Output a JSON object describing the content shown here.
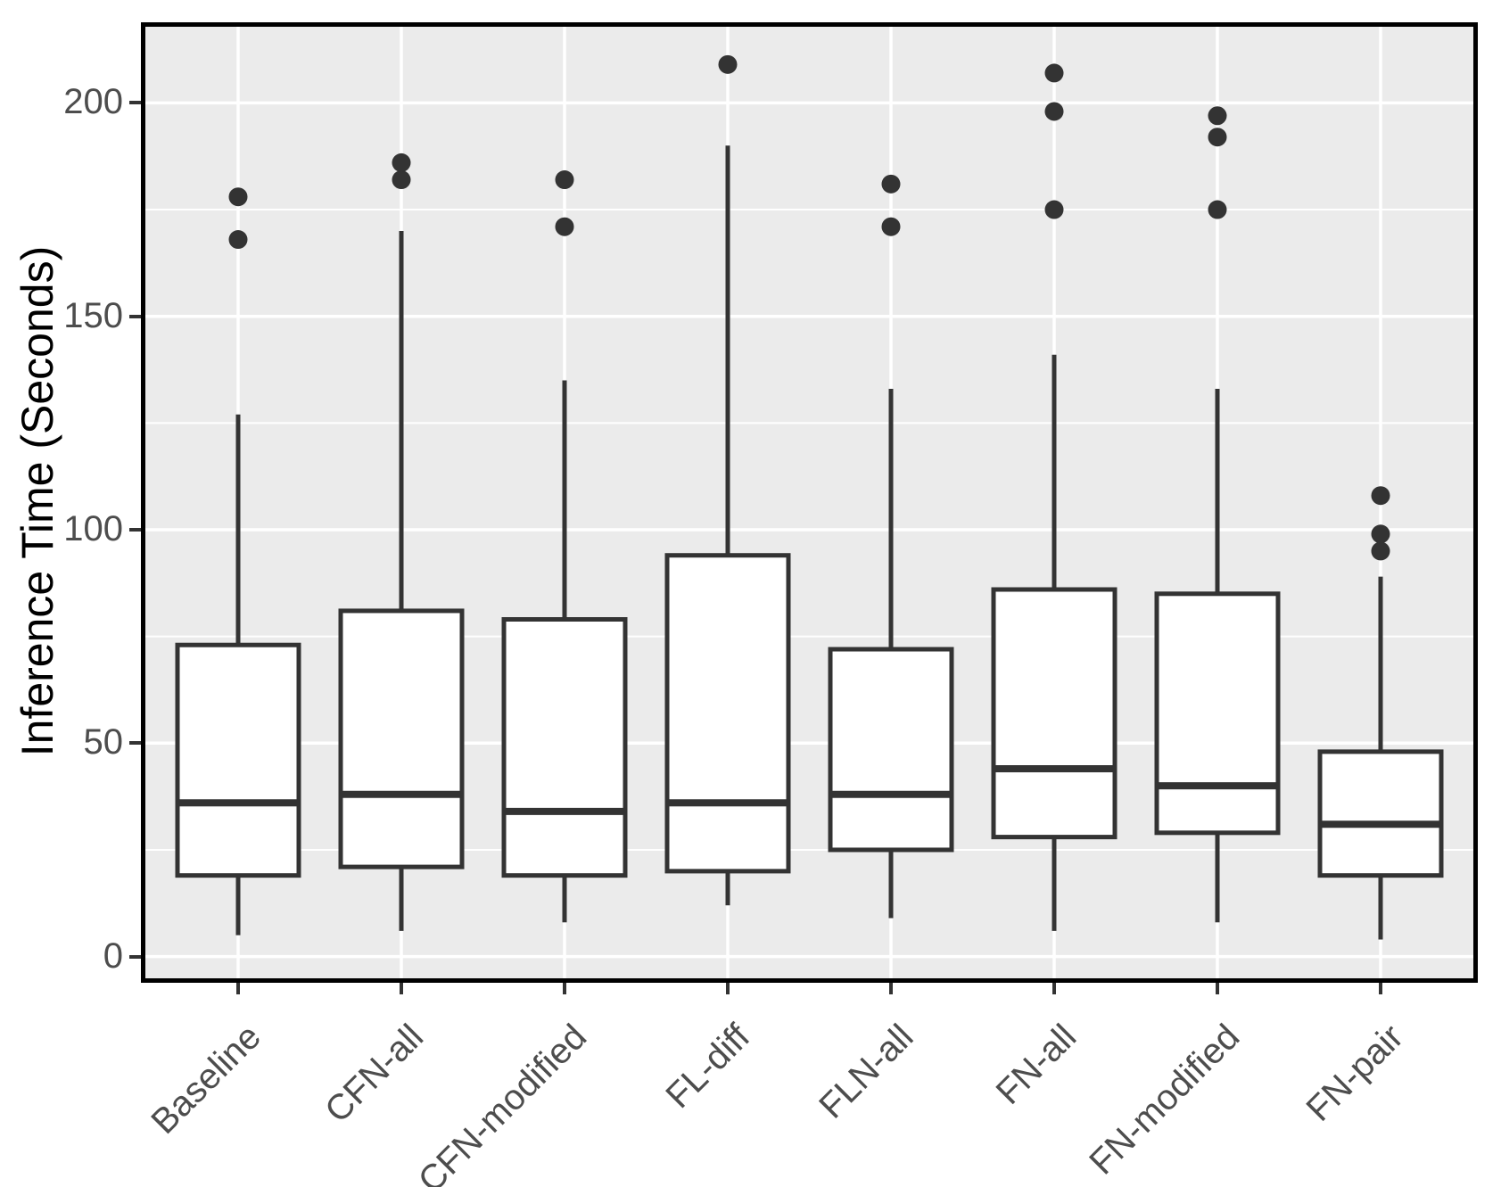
{
  "colors": {
    "panel_background": "#EBEBEB",
    "grid_major": "#FFFFFF",
    "grid_minor": "#FFFFFF",
    "box_stroke": "#333333",
    "box_fill": "#FFFFFF",
    "outlier": "#333333",
    "panel_border": "#000000",
    "tick_mark": "#333333",
    "axis_text": "#4D4D4D",
    "axis_title": "#000000",
    "page_background": "#FFFFFF"
  },
  "chart_data": {
    "type": "boxplot",
    "title": "",
    "xlabel": "",
    "ylabel": "Inference Time (Seconds)",
    "ylim": [
      -6,
      219
    ],
    "yticks": [
      0,
      50,
      100,
      150,
      200
    ],
    "ytick_labels": [
      "0",
      "50",
      "100",
      "150",
      "200"
    ],
    "yticks_minor": [
      25,
      75,
      125,
      175
    ],
    "grid": "on",
    "legend_position": "none",
    "categories": [
      "Baseline",
      "CFN-all",
      "CFN-modified",
      "FL-diff",
      "FLN-all",
      "FN-all",
      "FN-modified",
      "FN-pair"
    ],
    "series": [
      {
        "name": "Baseline",
        "whisker_low": 5,
        "q1": 19,
        "median": 36,
        "q3": 73,
        "whisker_high": 127,
        "outliers": [
          168,
          178
        ]
      },
      {
        "name": "CFN-all",
        "whisker_low": 6,
        "q1": 21,
        "median": 38,
        "q3": 81,
        "whisker_high": 170,
        "outliers": [
          182,
          186
        ]
      },
      {
        "name": "CFN-modified",
        "whisker_low": 8,
        "q1": 19,
        "median": 34,
        "q3": 79,
        "whisker_high": 135,
        "outliers": [
          171,
          182
        ]
      },
      {
        "name": "FL-diff",
        "whisker_low": 12,
        "q1": 20,
        "median": 36,
        "q3": 94,
        "whisker_high": 190,
        "outliers": [
          209
        ]
      },
      {
        "name": "FLN-all",
        "whisker_low": 9,
        "q1": 25,
        "median": 38,
        "q3": 72,
        "whisker_high": 133,
        "outliers": [
          171,
          181
        ]
      },
      {
        "name": "FN-all",
        "whisker_low": 6,
        "q1": 28,
        "median": 44,
        "q3": 86,
        "whisker_high": 141,
        "outliers": [
          175,
          198,
          207
        ]
      },
      {
        "name": "FN-modified",
        "whisker_low": 8,
        "q1": 29,
        "median": 40,
        "q3": 85,
        "whisker_high": 133,
        "outliers": [
          175,
          192,
          197
        ]
      },
      {
        "name": "FN-pair",
        "whisker_low": 4,
        "q1": 19,
        "median": 31,
        "q3": 48,
        "whisker_high": 89,
        "outliers": [
          95,
          99,
          108
        ]
      }
    ]
  }
}
